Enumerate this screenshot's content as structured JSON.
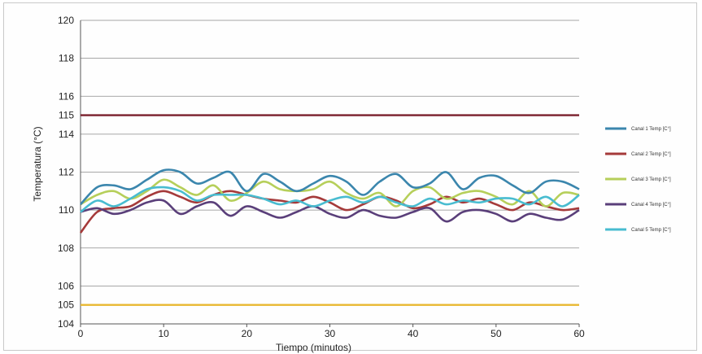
{
  "chart_data": {
    "type": "line",
    "title": "",
    "xlabel": "Tiempo (minutos)",
    "ylabel": "Temperatura (°C)",
    "xlim": [
      0,
      60
    ],
    "ylim": [
      104,
      120
    ],
    "x_ticks": [
      "0",
      "10",
      "20",
      "30",
      "40",
      "50",
      "60"
    ],
    "y_ticks": [
      "104",
      "105",
      "106",
      "108",
      "110",
      "112",
      "114",
      "115",
      "116",
      "118",
      "120"
    ],
    "grid": true,
    "legend_position": "right",
    "reference_lines": [
      {
        "value": 115,
        "color": "#7a1f2b"
      },
      {
        "value": 105,
        "color": "#e8b830"
      }
    ],
    "x": [
      0,
      2,
      4,
      6,
      8,
      10,
      12,
      14,
      16,
      18,
      20,
      22,
      24,
      26,
      28,
      30,
      32,
      34,
      36,
      38,
      40,
      42,
      44,
      46,
      48,
      50,
      52,
      54,
      56,
      58,
      60
    ],
    "series": [
      {
        "name": "Canal 1 Temp [C°]",
        "color": "#3b86ad",
        "values": [
          110.3,
          111.2,
          111.3,
          111.1,
          111.6,
          112.1,
          112.0,
          111.4,
          111.7,
          112.0,
          111.0,
          111.9,
          111.5,
          111.0,
          111.4,
          111.8,
          111.5,
          110.8,
          111.5,
          111.9,
          111.2,
          111.4,
          112.0,
          111.1,
          111.7,
          111.8,
          111.3,
          110.9,
          111.5,
          111.5,
          111.1
        ]
      },
      {
        "name": "Canal 2 Temp [C°]",
        "color": "#a53a3a",
        "values": [
          108.8,
          109.9,
          110.1,
          110.2,
          110.7,
          111.0,
          110.7,
          110.4,
          110.8,
          111.0,
          110.8,
          110.6,
          110.5,
          110.4,
          110.7,
          110.4,
          110.0,
          110.3,
          110.7,
          110.5,
          110.1,
          110.3,
          110.7,
          110.4,
          110.6,
          110.3,
          110.0,
          110.4,
          110.2,
          110.0,
          110.1
        ]
      },
      {
        "name": "Canal 3 Temp [C°]",
        "color": "#b6cf5a",
        "values": [
          110.3,
          110.8,
          111.0,
          110.6,
          111.0,
          111.6,
          111.2,
          110.8,
          111.3,
          110.5,
          110.9,
          111.5,
          111.1,
          111.0,
          111.1,
          111.5,
          110.9,
          110.6,
          110.9,
          110.2,
          111.0,
          111.2,
          110.6,
          110.9,
          111.0,
          110.7,
          110.3,
          111.0,
          110.2,
          110.9,
          110.8
        ]
      },
      {
        "name": "Canal 4 Temp [C°]",
        "color": "#5a3f7a",
        "values": [
          109.9,
          110.1,
          109.8,
          110.0,
          110.4,
          110.5,
          109.8,
          110.2,
          110.4,
          109.7,
          110.2,
          109.9,
          109.6,
          109.9,
          110.2,
          109.8,
          109.6,
          110.0,
          109.7,
          109.6,
          109.9,
          110.1,
          109.4,
          109.9,
          110.0,
          109.8,
          109.4,
          109.8,
          109.6,
          109.5,
          110.0
        ]
      },
      {
        "name": "Canal 5 Temp [C°]",
        "color": "#48bcd0",
        "values": [
          109.9,
          110.5,
          110.2,
          110.6,
          111.1,
          111.2,
          111.0,
          110.5,
          110.8,
          110.8,
          110.8,
          110.6,
          110.3,
          110.5,
          110.2,
          110.5,
          110.7,
          110.4,
          110.7,
          110.4,
          110.2,
          110.6,
          110.3,
          110.5,
          110.4,
          110.6,
          110.6,
          110.3,
          110.7,
          110.2,
          110.8
        ]
      }
    ]
  }
}
